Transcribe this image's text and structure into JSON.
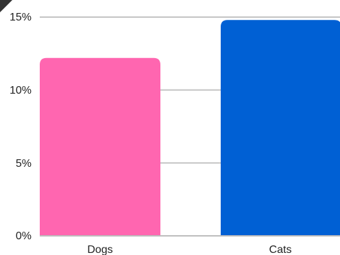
{
  "chart_data": {
    "type": "bar",
    "categories": [
      "Dogs",
      "Cats"
    ],
    "values": [
      12.2,
      14.8
    ],
    "colors": [
      "#ff66b0",
      "#0060d4"
    ],
    "y_ticks": [
      "0%",
      "5%",
      "10%",
      "15%"
    ],
    "y_tick_values": [
      0,
      5,
      10,
      15
    ],
    "ylim": [
      0,
      15
    ],
    "grid": true,
    "legend": "none"
  }
}
